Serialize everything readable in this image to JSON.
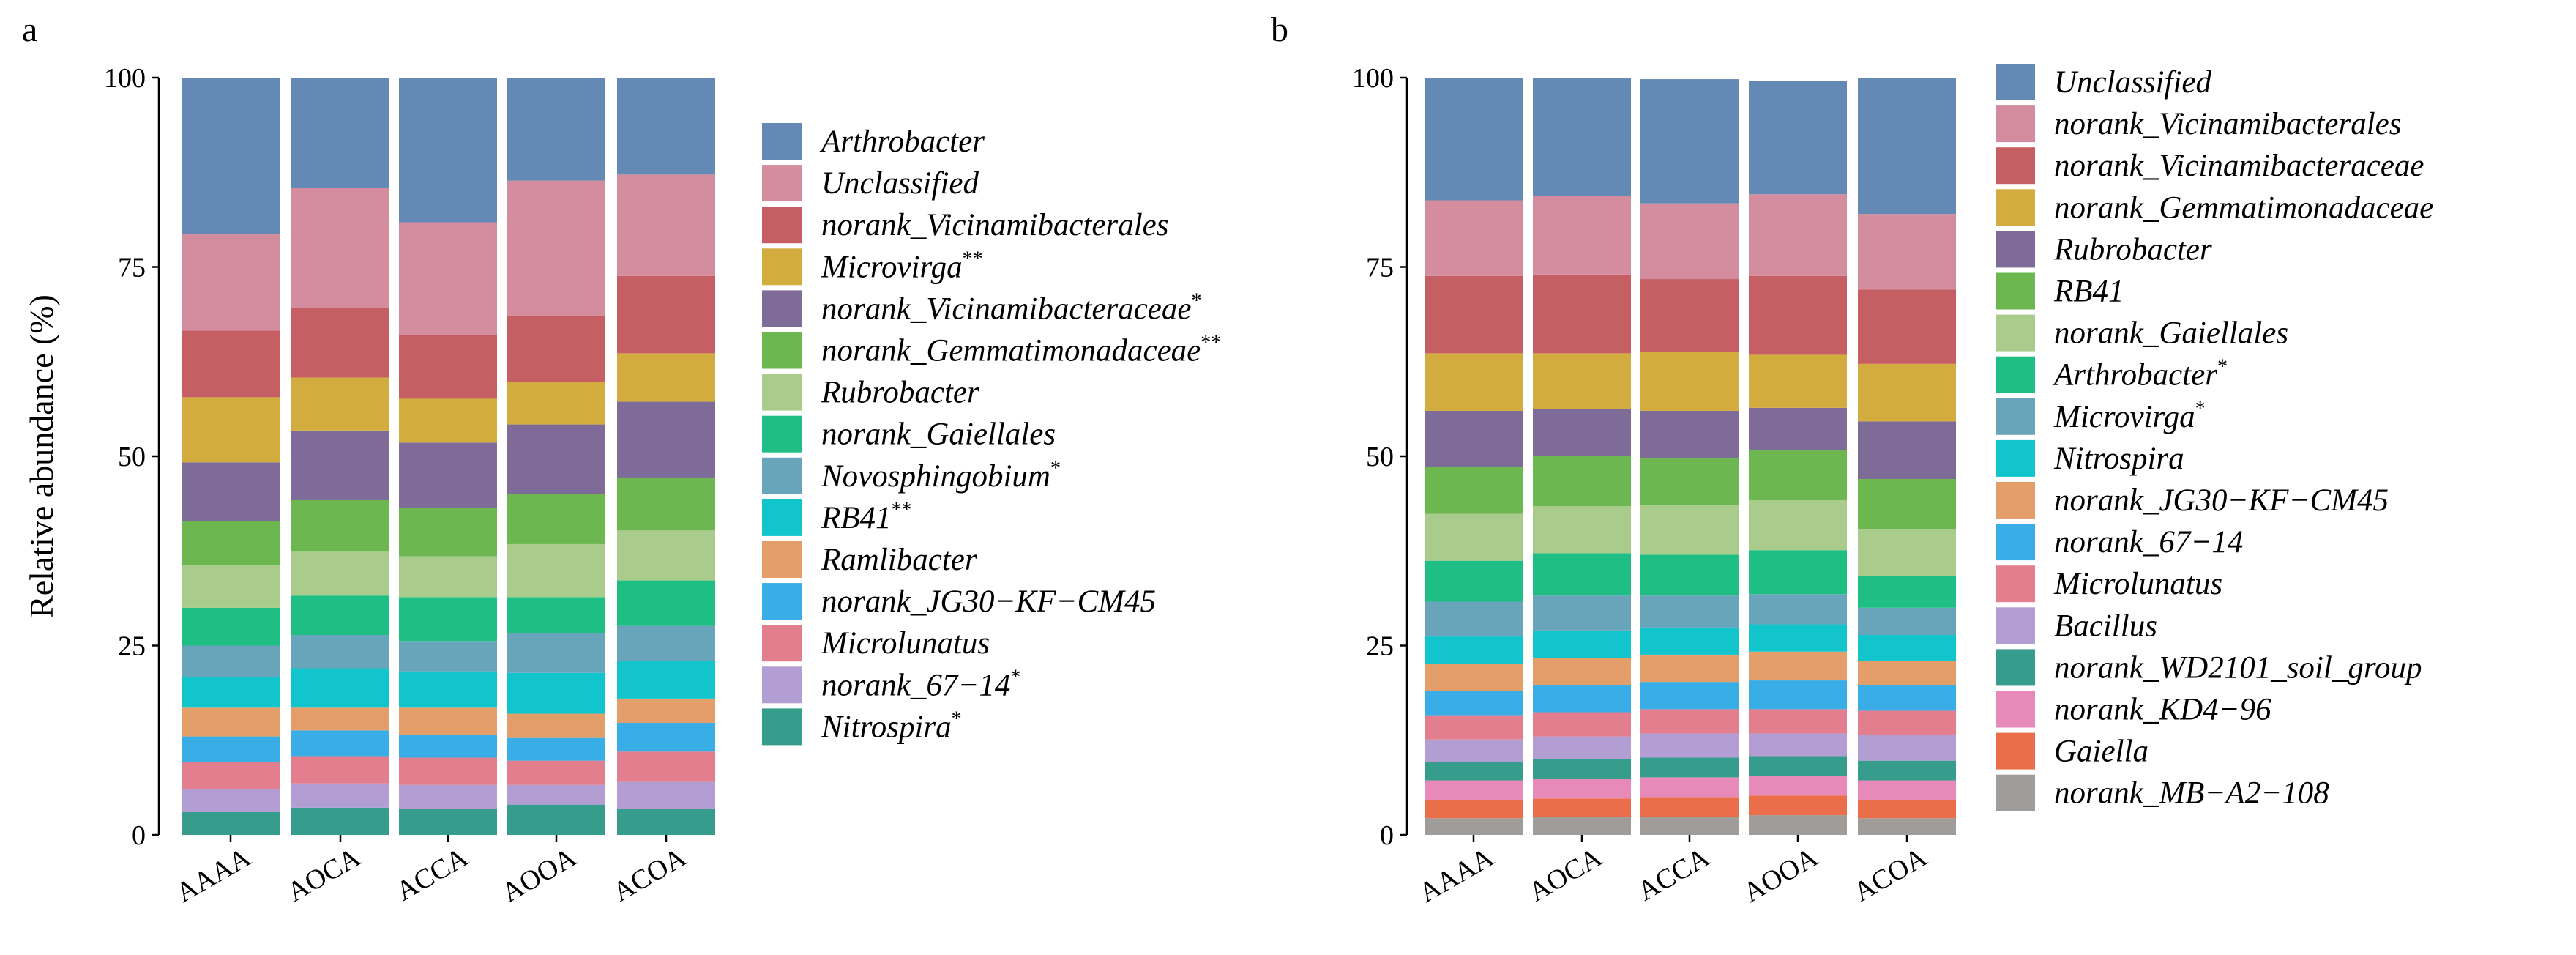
{
  "chart_data": [
    {
      "panel_label": "a",
      "type": "bar",
      "stacked": true,
      "title": "",
      "ylabel": "Relative abundance (%)",
      "xlabel": "",
      "ylim": [
        0,
        100
      ],
      "yticks": [
        0,
        25,
        50,
        75,
        100
      ],
      "categories": [
        "AAAA",
        "AOCA",
        "ACCA",
        "AOOA",
        "ACOA"
      ],
      "legend_position": "right",
      "series": [
        {
          "name": "Nitrospira",
          "sup": "*",
          "italic": true,
          "color": "#369c8c",
          "values": [
            3.0,
            3.6,
            3.4,
            4.0,
            3.4
          ]
        },
        {
          "name": "norank_67−14",
          "sup": "*",
          "italic": true,
          "color": "#b39ed4",
          "values": [
            3.0,
            3.2,
            3.2,
            2.6,
            3.6
          ]
        },
        {
          "name": "Microlunatus",
          "sup": "",
          "italic": true,
          "color": "#e27e8e",
          "values": [
            3.6,
            3.6,
            3.6,
            3.2,
            4.0
          ]
        },
        {
          "name": "norank_JG30−KF−CM45",
          "sup": "",
          "italic": true,
          "color": "#39aee6",
          "values": [
            3.4,
            3.4,
            3.0,
            3.0,
            3.8
          ]
        },
        {
          "name": "Ramlibacter",
          "sup": "",
          "italic": true,
          "color": "#e39e6a",
          "values": [
            3.8,
            3.0,
            3.6,
            3.2,
            3.2
          ]
        },
        {
          "name": "RB41",
          "sup": "**",
          "italic": true,
          "color": "#12c4cc",
          "values": [
            4.0,
            5.2,
            4.8,
            5.4,
            5.0
          ]
        },
        {
          "name": "Novosphingobium",
          "sup": "*",
          "italic": true,
          "color": "#68a4ba",
          "values": [
            4.2,
            4.4,
            4.0,
            5.2,
            4.6
          ]
        },
        {
          "name": "norank_Gaiellales",
          "sup": "",
          "italic": true,
          "color": "#1fbe84",
          "values": [
            5.0,
            5.2,
            5.8,
            4.8,
            6.0
          ]
        },
        {
          "name": "Rubrobacter",
          "sup": "",
          "italic": true,
          "color": "#a9cc8d",
          "values": [
            5.6,
            5.8,
            5.4,
            7.0,
            6.6
          ]
        },
        {
          "name": "norank_Gemmatimonadaceae",
          "sup": "**",
          "italic": true,
          "color": "#6cb74f",
          "values": [
            5.8,
            6.8,
            6.4,
            6.6,
            7.0
          ]
        },
        {
          "name": "norank_Vicinamibacteraceae",
          "sup": "*",
          "italic": true,
          "color": "#7e6b98",
          "values": [
            7.8,
            9.2,
            8.6,
            9.2,
            10.0
          ]
        },
        {
          "name": "Microvirga",
          "sup": "**",
          "italic": true,
          "color": "#d2ac3f",
          "values": [
            8.6,
            7.0,
            5.8,
            5.6,
            6.4
          ]
        },
        {
          "name": "norank_Vicinamibacterales",
          "sup": "",
          "italic": true,
          "color": "#c55f63",
          "values": [
            8.8,
            9.2,
            8.4,
            8.8,
            10.2
          ]
        },
        {
          "name": "Unclassified",
          "sup": "",
          "italic": true,
          "color": "#d48d9f",
          "values": [
            12.8,
            15.8,
            14.9,
            17.8,
            13.4
          ]
        },
        {
          "name": "Arthrobacter",
          "sup": "",
          "italic": true,
          "color": "#6489b4",
          "values": [
            20.6,
            14.6,
            19.1,
            13.6,
            12.8
          ]
        }
      ],
      "legend_order": [
        "Arthrobacter",
        "Unclassified",
        "norank_Vicinamibacterales",
        "Microvirga",
        "norank_Vicinamibacteraceae",
        "norank_Gemmatimonadaceae",
        "Rubrobacter",
        "norank_Gaiellales",
        "Novosphingobium",
        "RB41",
        "Ramlibacter",
        "norank_JG30−KF−CM45",
        "Microlunatus",
        "norank_67−14",
        "Nitrospira"
      ]
    },
    {
      "panel_label": "b",
      "type": "bar",
      "stacked": true,
      "title": "",
      "ylabel": "",
      "xlabel": "",
      "ylim": [
        0,
        100
      ],
      "yticks": [
        0,
        25,
        50,
        75,
        100
      ],
      "categories": [
        "AAAA",
        "AOCA",
        "ACCA",
        "AOOA",
        "ACOA"
      ],
      "legend_position": "right",
      "series": [
        {
          "name": "norank_MB−A2−108",
          "sup": "",
          "italic": true,
          "color": "#a09c99",
          "values": [
            2.2,
            2.4,
            2.4,
            2.6,
            2.2
          ]
        },
        {
          "name": "Gaiella",
          "sup": "",
          "italic": true,
          "color": "#ea6e4a",
          "values": [
            2.4,
            2.4,
            2.6,
            2.6,
            2.4
          ]
        },
        {
          "name": "norank_KD4−96",
          "sup": "",
          "italic": true,
          "color": "#e78ab9",
          "values": [
            2.6,
            2.6,
            2.6,
            2.6,
            2.6
          ]
        },
        {
          "name": "norank_WD2101_soil_group",
          "sup": "",
          "italic": true,
          "color": "#369c8c",
          "values": [
            2.4,
            2.6,
            2.6,
            2.6,
            2.6
          ]
        },
        {
          "name": "Bacillus",
          "sup": "",
          "italic": true,
          "color": "#b39ed4",
          "values": [
            3.0,
            3.0,
            3.2,
            3.0,
            3.4
          ]
        },
        {
          "name": "Microlunatus",
          "sup": "",
          "italic": true,
          "color": "#e27e8e",
          "values": [
            3.2,
            3.2,
            3.2,
            3.2,
            3.2
          ]
        },
        {
          "name": "norank_67−14",
          "sup": "",
          "italic": true,
          "color": "#39aee6",
          "values": [
            3.2,
            3.6,
            3.6,
            3.8,
            3.4
          ]
        },
        {
          "name": "norank_JG30−KF−CM45",
          "sup": "",
          "italic": true,
          "color": "#e39e6a",
          "values": [
            3.6,
            3.6,
            3.6,
            3.8,
            3.2
          ]
        },
        {
          "name": "Nitrospira",
          "sup": "",
          "italic": true,
          "color": "#12c4cc",
          "values": [
            3.6,
            3.6,
            3.6,
            3.6,
            3.4
          ]
        },
        {
          "name": "Microvirga",
          "sup": "*",
          "italic": true,
          "color": "#68a4ba",
          "values": [
            4.6,
            4.6,
            4.2,
            4.0,
            3.6
          ]
        },
        {
          "name": "Arthrobacter",
          "sup": "*",
          "italic": true,
          "color": "#1fbe84",
          "values": [
            5.4,
            5.6,
            5.4,
            5.8,
            4.2
          ]
        },
        {
          "name": "norank_Gaiellales",
          "sup": "",
          "italic": true,
          "color": "#a9cc8d",
          "values": [
            6.2,
            6.2,
            6.6,
            6.6,
            6.2
          ]
        },
        {
          "name": "RB41",
          "sup": "",
          "italic": true,
          "color": "#6cb74f",
          "values": [
            6.2,
            6.6,
            6.2,
            6.6,
            6.6
          ]
        },
        {
          "name": "Rubrobacter",
          "sup": "",
          "italic": true,
          "color": "#7e6b98",
          "values": [
            7.4,
            6.2,
            6.2,
            5.6,
            7.6
          ]
        },
        {
          "name": "norank_Gemmatimonadaceae",
          "sup": "",
          "italic": true,
          "color": "#d2ac3f",
          "values": [
            7.6,
            7.4,
            7.8,
            7.0,
            7.6
          ]
        },
        {
          "name": "norank_Vicinamibacteraceae",
          "sup": "",
          "italic": true,
          "color": "#c55f63",
          "values": [
            10.2,
            10.4,
            9.6,
            10.4,
            9.8
          ]
        },
        {
          "name": "norank_Vicinamibacterales",
          "sup": "",
          "italic": true,
          "color": "#d48d9f",
          "values": [
            10.0,
            10.4,
            10.0,
            10.8,
            10.0
          ]
        },
        {
          "name": "Unclassified",
          "sup": "",
          "italic": true,
          "color": "#6489b4",
          "values": [
            16.2,
            15.6,
            16.4,
            15.0,
            18.0
          ]
        }
      ],
      "legend_order": [
        "Unclassified",
        "norank_Vicinamibacterales",
        "norank_Vicinamibacteraceae",
        "norank_Gemmatimonadaceae",
        "Rubrobacter",
        "RB41",
        "norank_Gaiellales",
        "Arthrobacter",
        "Microvirga",
        "Nitrospira",
        "norank_JG30−KF−CM45",
        "norank_67−14",
        "Microlunatus",
        "Bacillus",
        "norank_WD2101_soil_group",
        "norank_KD4−96",
        "Gaiella",
        "norank_MB−A2−108"
      ]
    }
  ]
}
